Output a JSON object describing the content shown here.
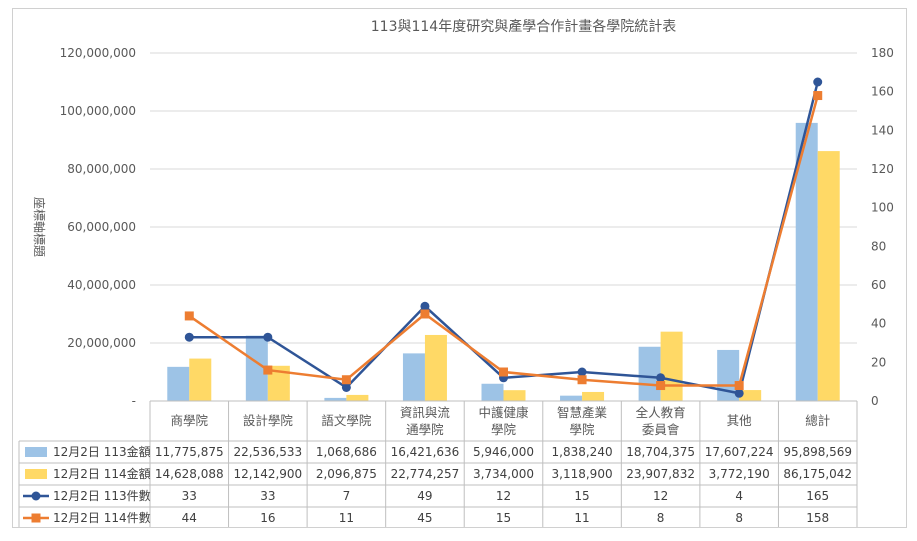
{
  "chart_data": {
    "type": "bar",
    "title": "113與114年度研究與產學合作計畫各學院統計表",
    "ylabel": "座標軸標題",
    "categories": [
      [
        "商學院"
      ],
      [
        "設計學院"
      ],
      [
        "語文學院"
      ],
      [
        "資訊與流",
        "通學院"
      ],
      [
        "中護健康",
        "學院"
      ],
      [
        "智慧產業",
        "學院"
      ],
      [
        "全人教育",
        "委員會"
      ],
      [
        "其他"
      ],
      [
        "總計"
      ]
    ],
    "ylim": [
      0,
      120000000
    ],
    "y_ticks": [
      "-",
      "20,000,000",
      "40,000,000",
      "60,000,000",
      "80,000,000",
      "100,000,000",
      "120,000,000"
    ],
    "y2lim": [
      0,
      180
    ],
    "y2_ticks": [
      "0",
      "20",
      "40",
      "60",
      "80",
      "100",
      "120",
      "140",
      "160",
      "180"
    ],
    "series": [
      {
        "name": "12月2日 113金額",
        "type": "bar",
        "axis": "left",
        "color": "#9dc3e6",
        "values": [
          11775875,
          22536533,
          1068686,
          16421636,
          5946000,
          1838240,
          18704375,
          17607224,
          95898569
        ],
        "labels": [
          "11,775,875",
          "22,536,533",
          "1,068,686",
          "16,421,636",
          "5,946,000",
          "1,838,240",
          "18,704,375",
          "17,607,224",
          "95,898,569"
        ]
      },
      {
        "name": "12月2日 114金額",
        "type": "bar",
        "axis": "left",
        "color": "#ffd966",
        "values": [
          14628088,
          12142900,
          2096875,
          22774257,
          3734000,
          3118900,
          23907832,
          3772190,
          86175042
        ],
        "labels": [
          "14,628,088",
          "12,142,900",
          "2,096,875",
          "22,774,257",
          "3,734,000",
          "3,118,900",
          "23,907,832",
          "3,772,190",
          "86,175,042"
        ]
      },
      {
        "name": "12月2日 113件數",
        "type": "line",
        "axis": "right",
        "color": "#2f5597",
        "marker": "circle",
        "values": [
          33,
          33,
          7,
          49,
          12,
          15,
          12,
          4,
          165
        ],
        "labels": [
          "33",
          "33",
          "7",
          "49",
          "12",
          "15",
          "12",
          "4",
          "165"
        ]
      },
      {
        "name": "12月2日 114件數",
        "type": "line",
        "axis": "right",
        "color": "#ed7d31",
        "marker": "square",
        "values": [
          44,
          16,
          11,
          45,
          15,
          11,
          8,
          8,
          158
        ],
        "labels": [
          "44",
          "16",
          "11",
          "45",
          "15",
          "11",
          "8",
          "8",
          "158"
        ]
      }
    ],
    "data_table": true,
    "gridlines": true
  }
}
